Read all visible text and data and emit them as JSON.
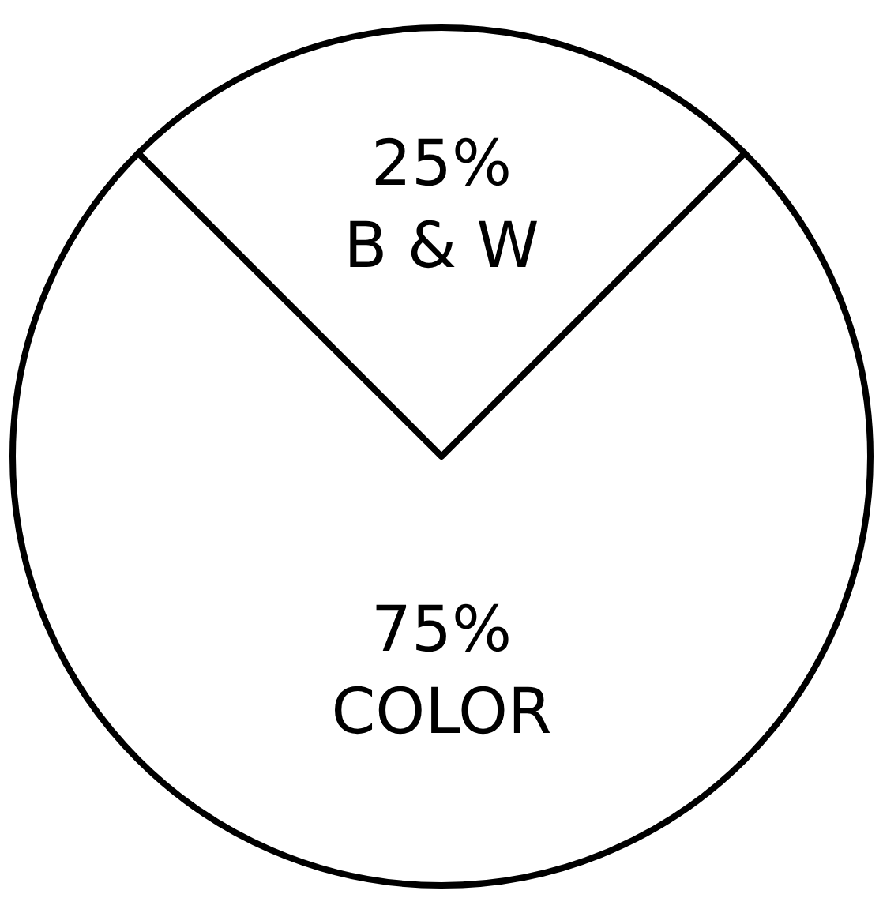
{
  "chart_data": {
    "type": "pie",
    "categories": [
      "B & W",
      "COLOR"
    ],
    "values": [
      25,
      75
    ],
    "colors": [
      "#ffffff",
      "#ffffff"
    ],
    "value_labels": [
      "25%",
      "75%"
    ]
  }
}
